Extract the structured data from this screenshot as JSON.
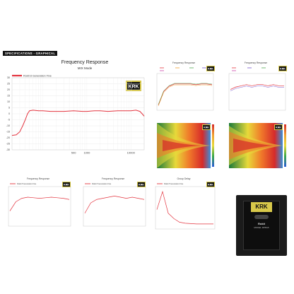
{
  "banner": "SPECIFICATIONS - GRAPHICAL",
  "logo_text": "KRK",
  "colors": {
    "curve": "#e3343f",
    "axis": "#888888",
    "grid": "#e6e6e6",
    "logo_bg": "#d8c94a"
  },
  "main_chart": {
    "title": "Frequency Response",
    "subtitle": "MIX Mode",
    "legend": "Rokit 8 Generation Five",
    "y_ticks": [
      "30",
      "25",
      "20",
      "15",
      "10",
      "5",
      "0",
      "-5",
      "-10",
      "-15",
      "-20",
      "-25",
      "-30"
    ],
    "x_ticks": [
      "500",
      "1000",
      "10000"
    ]
  },
  "small_charts": {
    "fr_top_left": {
      "title": "Frequency Response"
    },
    "fr_top_right": {
      "title": "Frequency Response"
    },
    "fr_bottom_1": {
      "title": "Frequency Response",
      "legend": "Rokit 8 Generation Five"
    },
    "fr_bottom_2": {
      "title": "Frequency Response",
      "legend": "Rokit 8 Generation Five"
    },
    "group_delay": {
      "title": "Group Delay",
      "legend": "Rokit 8 Generation Five"
    }
  },
  "speaker": {
    "logo": "KRK",
    "line1": "Rokit",
    "line2": "MODEL RP8G5"
  },
  "chart_data": [
    {
      "type": "line",
      "title": "Frequency Response",
      "subtitle": "MIX Mode",
      "x_scale": "log",
      "xlim": [
        20,
        20000
      ],
      "ylim": [
        -30,
        30
      ],
      "series": [
        {
          "name": "Rokit 8 Generation Five",
          "x": [
            20,
            25,
            30,
            35,
            40,
            45,
            50,
            60,
            80,
            100,
            150,
            200,
            300,
            500,
            800,
            1000,
            1500,
            2000,
            3000,
            5000,
            7000,
            10000,
            13000,
            16000,
            18000,
            20000
          ],
          "y": [
            -18,
            -17.5,
            -15,
            -10,
            -5,
            0,
            2.5,
            3,
            2.5,
            2.5,
            2,
            2,
            2,
            2.5,
            2,
            2,
            2.5,
            2.5,
            2,
            2.5,
            2.5,
            2.5,
            3,
            2,
            0,
            -2
          ]
        }
      ]
    },
    {
      "type": "line",
      "title": "Frequency Response",
      "series": [
        {
          "name": "",
          "x": [
            0,
            1,
            2,
            3,
            4,
            5,
            6,
            7,
            8,
            9,
            10
          ],
          "y": [
            -20,
            -2,
            5,
            8,
            8,
            8,
            8,
            7,
            8,
            8,
            7
          ]
        }
      ]
    },
    {
      "type": "line",
      "title": "Frequency Response",
      "series": [
        {
          "name": "",
          "x": [
            0,
            1,
            2,
            3,
            4,
            5,
            6,
            7,
            8,
            9,
            10
          ],
          "y": [
            0,
            1,
            1.5,
            2,
            1.5,
            2,
            2,
            1.5,
            2,
            1.5,
            1.5
          ]
        }
      ]
    },
    {
      "type": "heatmap",
      "title": ""
    },
    {
      "type": "heatmap",
      "title": ""
    },
    {
      "type": "line",
      "title": "Frequency Response",
      "series": [
        {
          "name": "Rokit 8 Generation Five",
          "x": [
            0,
            1,
            2,
            3,
            4,
            5,
            6,
            7,
            8,
            9,
            10
          ],
          "y": [
            -8,
            0,
            3,
            4,
            3.5,
            3,
            3.5,
            4,
            3.5,
            3,
            2
          ]
        }
      ]
    },
    {
      "type": "line",
      "title": "Frequency Response",
      "series": [
        {
          "name": "Rokit 8 Generation Five",
          "x": [
            0,
            1,
            2,
            3,
            4,
            5,
            6,
            7,
            8,
            9,
            10
          ],
          "y": [
            -10,
            -1,
            2,
            3,
            4,
            5,
            4,
            3,
            4,
            3,
            2
          ]
        }
      ]
    },
    {
      "type": "line",
      "title": "Group Delay",
      "series": [
        {
          "name": "Rokit 8 Generation Five",
          "x": [
            0,
            1,
            2,
            3,
            4,
            5,
            6,
            7,
            8,
            9,
            10
          ],
          "y": [
            4,
            9,
            3,
            1.5,
            0.5,
            0.2,
            0.1,
            0,
            0,
            0,
            0
          ]
        }
      ]
    }
  ]
}
